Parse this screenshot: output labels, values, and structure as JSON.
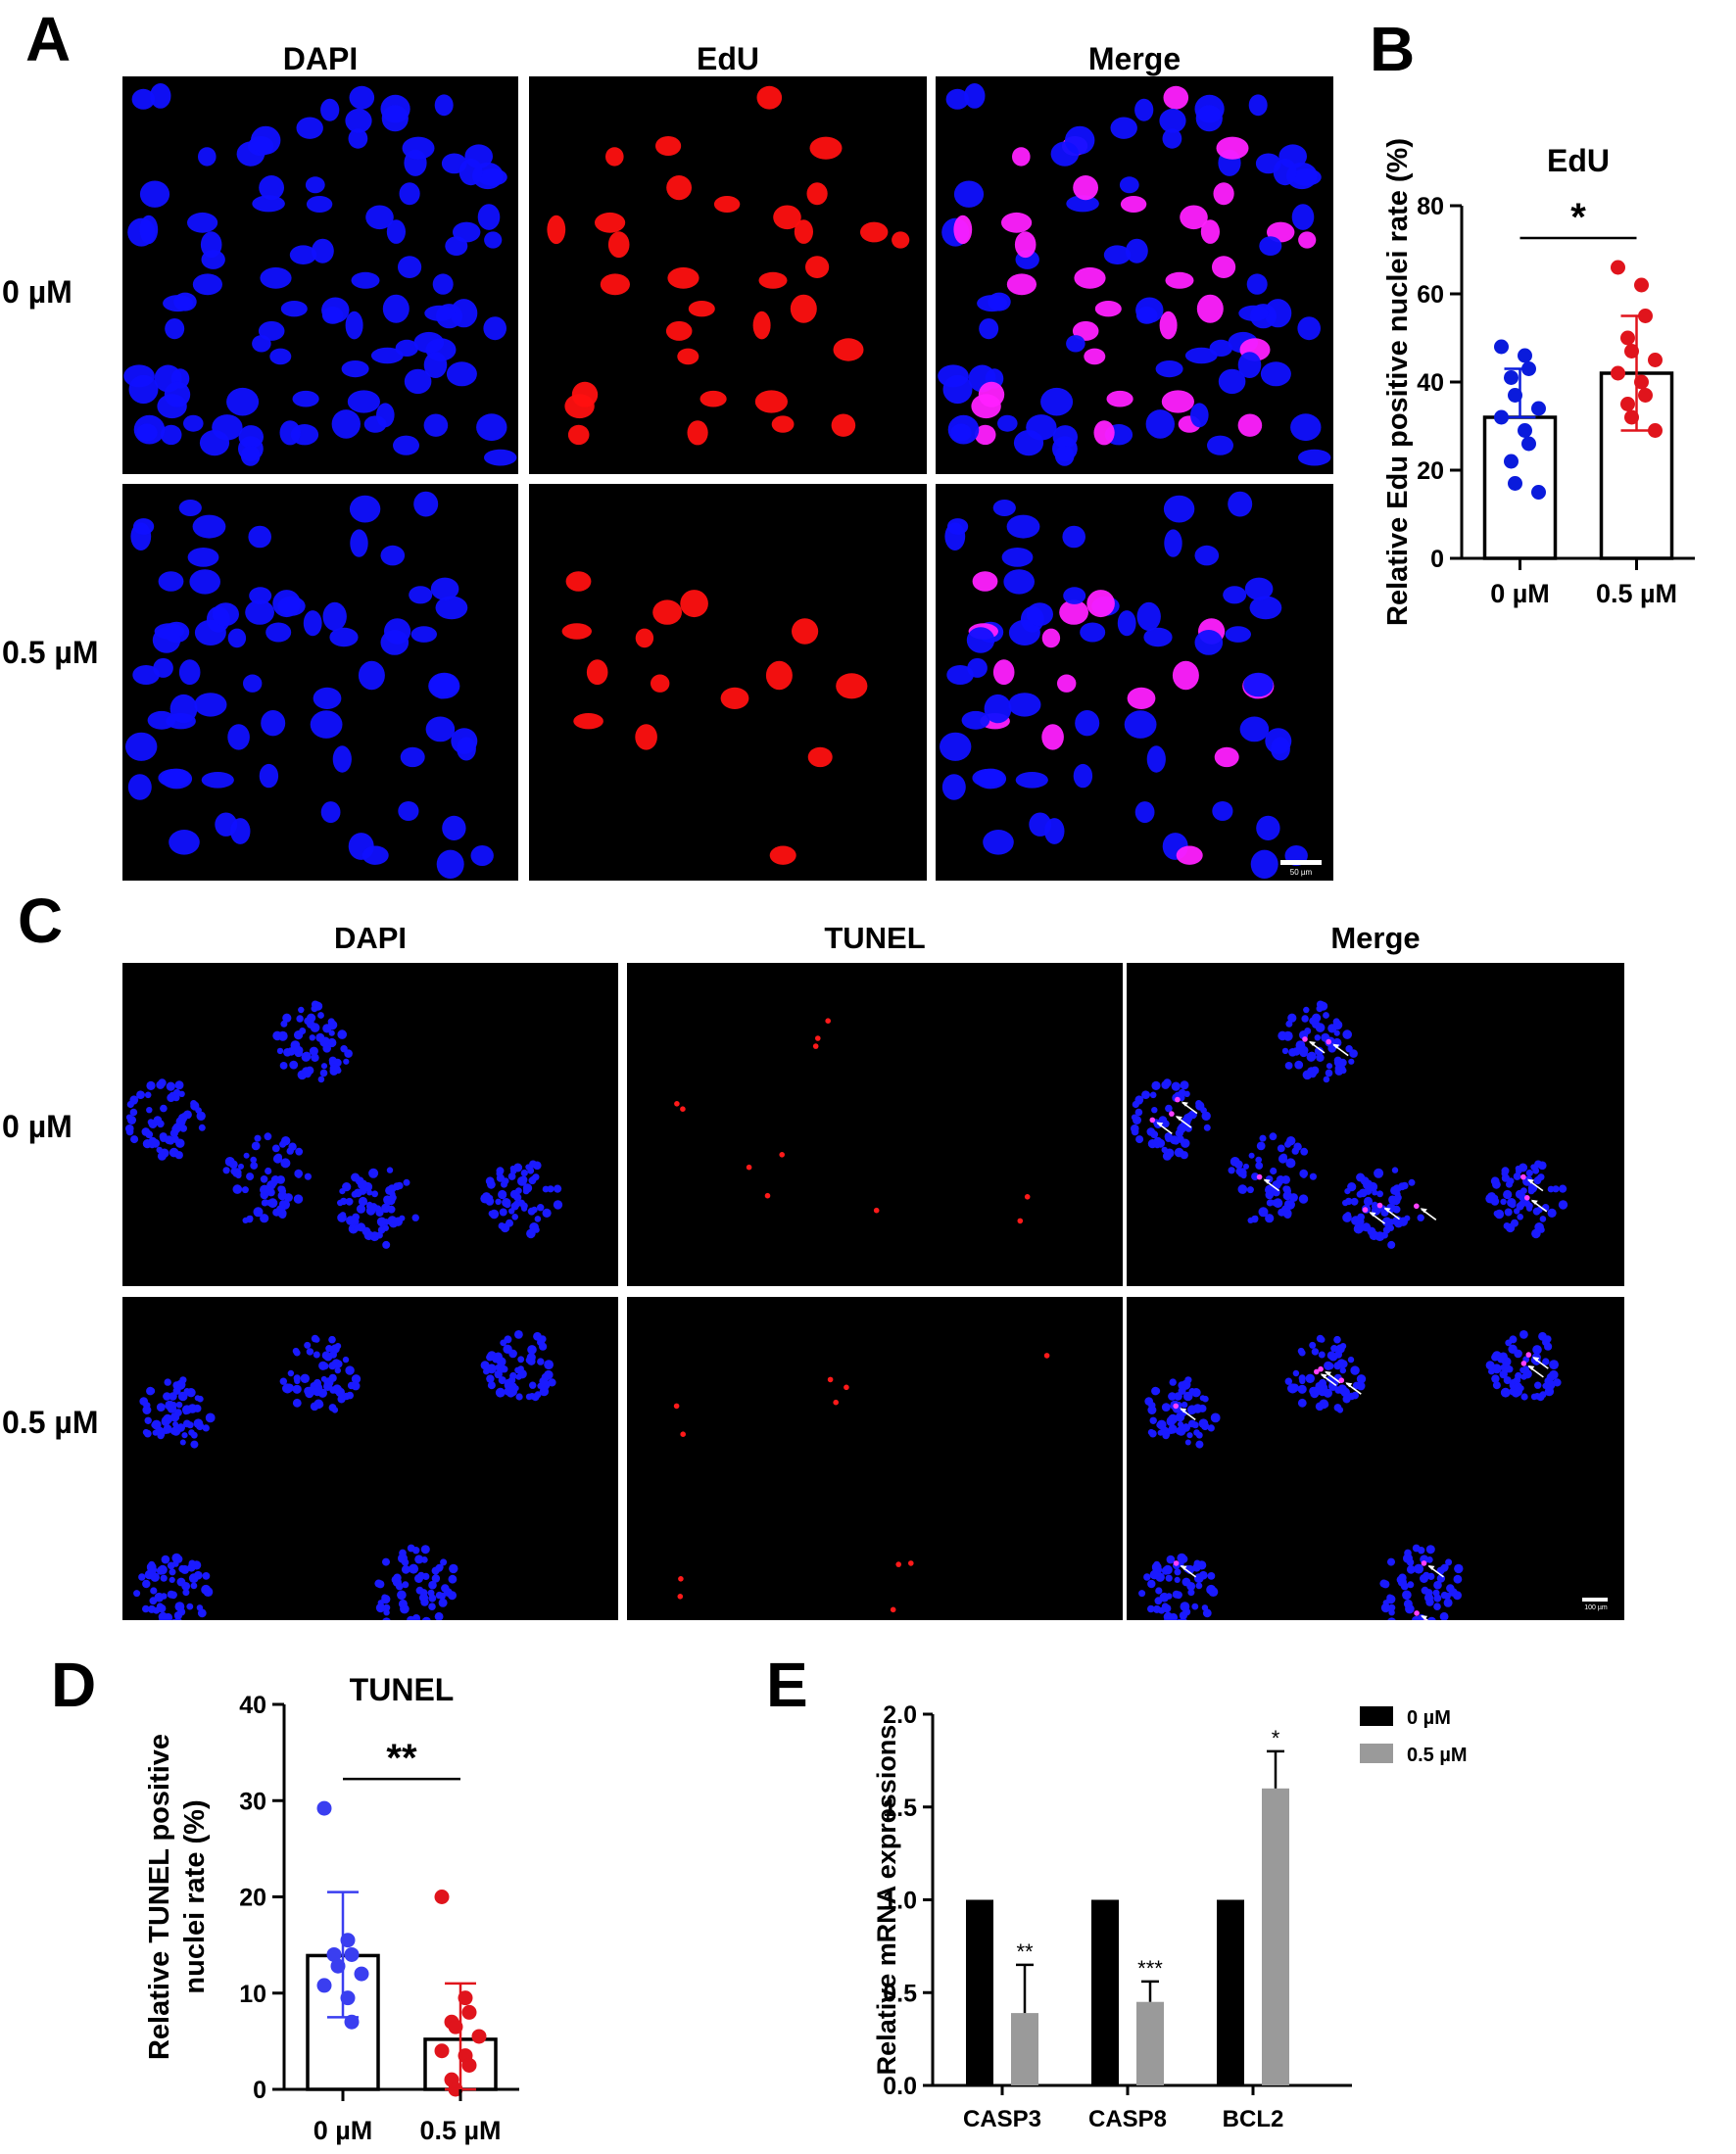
{
  "panel_letters": {
    "A": "A",
    "B": "B",
    "C": "C",
    "D": "D",
    "E": "E"
  },
  "panel_a": {
    "columns": [
      "DAPI",
      "EdU",
      "Merge"
    ],
    "rows": [
      "0 µM",
      "0.5 µM"
    ],
    "scale_label": "50 µm",
    "colors": {
      "dapi": "#1010ff",
      "edu": "#ff1010",
      "merge": "#ff20ff"
    }
  },
  "panel_c": {
    "columns": [
      "DAPI",
      "TUNEL",
      "Merge"
    ],
    "rows": [
      "0 µM",
      "0.5 µM"
    ],
    "scale_label": "100 µm"
  },
  "chart_data": [
    {
      "id": "B",
      "type": "bar",
      "title": "EdU",
      "ylabel": "Relative Edu positive nuclei rate (%)",
      "categories": [
        "0 µM",
        "0.5 µM"
      ],
      "values": [
        32,
        42
      ],
      "error": [
        [
          32,
          43
        ],
        [
          29,
          55
        ]
      ],
      "ylim": [
        0,
        80
      ],
      "yticks": [
        0,
        20,
        40,
        60,
        80
      ],
      "points": [
        [
          48,
          46,
          43,
          41,
          37,
          34,
          32,
          29,
          26,
          22,
          17,
          15
        ],
        [
          66,
          62,
          55,
          50,
          47,
          45,
          42,
          40,
          37,
          35,
          32,
          29
        ]
      ],
      "point_colors": [
        "#0a1bdc",
        "#e0141c"
      ],
      "significance": "*"
    },
    {
      "id": "D",
      "type": "bar",
      "title": "TUNEL",
      "ylabel": "Relative TUNEL positive nuclei rate (%)",
      "ylabel_lines": [
        "Relative TUNEL positive",
        "nuclei rate (%)"
      ],
      "categories": [
        "0 µM",
        "0.5 µM"
      ],
      "values": [
        13.9,
        5.2
      ],
      "error": [
        [
          7.5,
          20.5
        ],
        [
          0,
          11
        ]
      ],
      "ylim": [
        0,
        40
      ],
      "yticks": [
        0,
        10,
        20,
        30,
        40
      ],
      "points": [
        [
          29.2,
          15.5,
          14,
          14,
          12.8,
          12,
          10.8,
          9.5,
          7
        ],
        [
          20,
          9.5,
          8,
          7,
          6.5,
          5.5,
          4,
          3.5,
          2.5,
          1,
          0
        ]
      ],
      "point_colors": [
        "#3a3ef0",
        "#e0141c"
      ],
      "significance": "**"
    },
    {
      "id": "E",
      "type": "bar",
      "ylabel": "Relative mRNA expressions",
      "categories": [
        "CASP3",
        "CASP8",
        "BCL2"
      ],
      "series": [
        {
          "name": "0 µM",
          "values": [
            1,
            1,
            1
          ],
          "color": "#000000"
        },
        {
          "name": "0.5 µM",
          "values": [
            0.39,
            0.45,
            1.6
          ],
          "error_top": [
            0.65,
            0.56,
            1.8
          ],
          "color": "#9a9a9a"
        }
      ],
      "significance": [
        "**",
        "***",
        "*"
      ],
      "ylim": [
        0,
        2.0
      ],
      "yticks": [
        "0.0",
        "0.5",
        "1.0",
        "1.5",
        "2.0"
      ],
      "legend": "top-right"
    }
  ]
}
